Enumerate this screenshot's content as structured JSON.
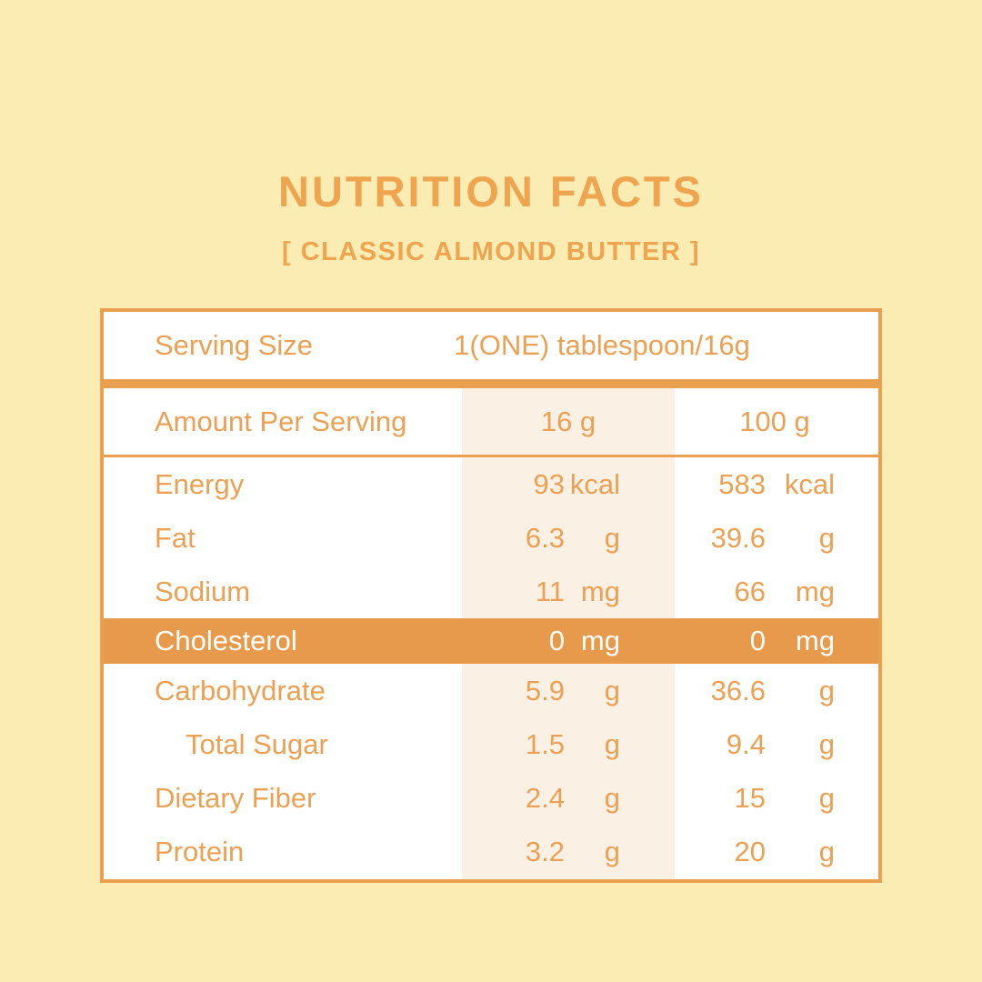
{
  "colors": {
    "background": "#FBECB3",
    "accent_orange": "#EFA44F",
    "text_orange": "#ECA053",
    "border_orange": "#E9A051",
    "highlight_row_bg": "#E89A4C",
    "highlight_row_text": "#FFFFFF",
    "serving_column_band": "#FAF1E4",
    "table_bg": "#FFFFFF"
  },
  "header": {
    "title": "NUTRITION FACTS",
    "subtitle": "[ CLASSIC ALMOND BUTTER ]"
  },
  "table": {
    "serving": {
      "label": "Serving Size",
      "value": "1(ONE) tablespoon/16g"
    },
    "columns": {
      "label": "Amount Per Serving",
      "col1": "16 g",
      "col2": "100 g"
    },
    "rows": [
      {
        "label": "Energy",
        "v1": "93",
        "u1": "kcal",
        "v2": "583",
        "u2": "kcal",
        "highlight": false,
        "indent": false
      },
      {
        "label": "Fat",
        "v1": "6.3",
        "u1": "g",
        "v2": "39.6",
        "u2": "g",
        "highlight": false,
        "indent": false
      },
      {
        "label": "Sodium",
        "v1": "11",
        "u1": "mg",
        "v2": "66",
        "u2": "mg",
        "highlight": false,
        "indent": false
      },
      {
        "label": "Cholesterol",
        "v1": "0",
        "u1": "mg",
        "v2": "0",
        "u2": "mg",
        "highlight": true,
        "indent": false
      },
      {
        "label": "Carbohydrate",
        "v1": "5.9",
        "u1": "g",
        "v2": "36.6",
        "u2": "g",
        "highlight": false,
        "indent": false
      },
      {
        "label": "Total Sugar",
        "v1": "1.5",
        "u1": "g",
        "v2": "9.4",
        "u2": "g",
        "highlight": false,
        "indent": true
      },
      {
        "label": "Dietary Fiber",
        "v1": "2.4",
        "u1": "g",
        "v2": "15",
        "u2": "g",
        "highlight": false,
        "indent": false
      },
      {
        "label": "Protein",
        "v1": "3.2",
        "u1": "g",
        "v2": "20",
        "u2": "g",
        "highlight": false,
        "indent": false
      }
    ]
  }
}
